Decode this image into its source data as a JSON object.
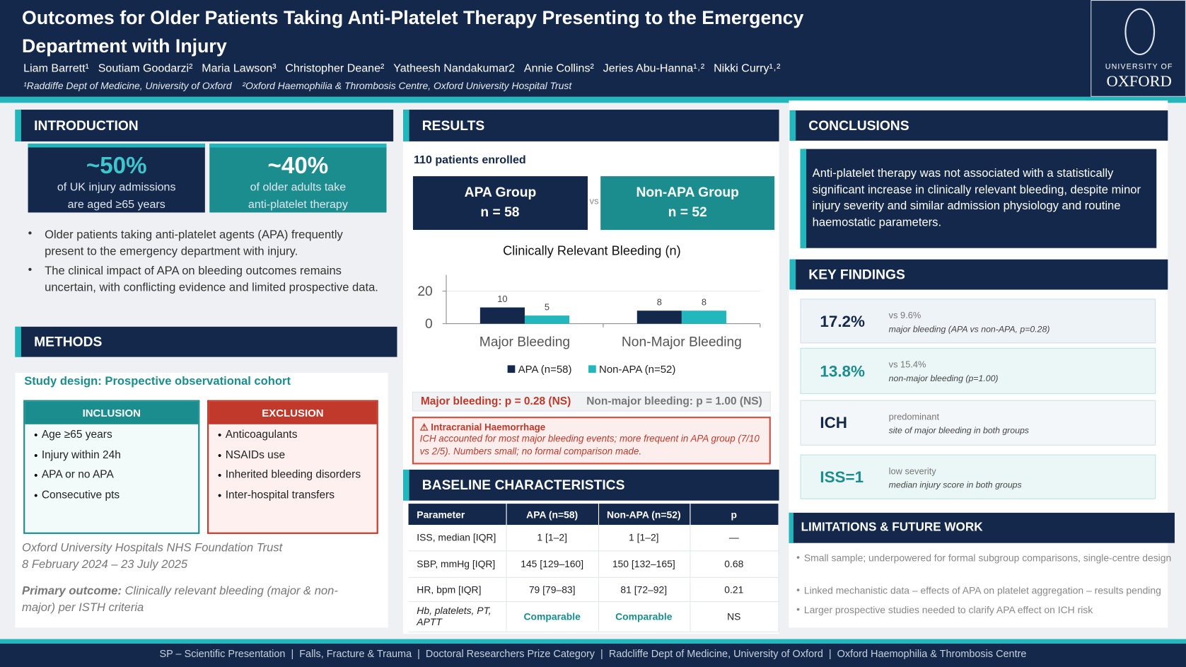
{
  "header": {
    "title": "Outcomes for Older Patients Taking Anti-Platelet Therapy Presenting to the Emergency Department with Injury",
    "authors": [
      "Liam Barrett¹",
      "Soutiam Goodarzi²",
      "Maria Lawson³",
      "Christopher Deane²",
      "Yatheesh Nandakumar2",
      "Annie Collins²",
      "Jeries Abu-Hanna¹˒²",
      "Nikki Curry¹˒²"
    ],
    "affiliations": [
      "¹Raddiffe Dept of Medicine, University of Oxford",
      "²Oxford Haemophilia & Thrombosis Centre, Oxford University Hospital Trust"
    ],
    "logo": [
      "UNIVERSITY OF",
      "OXFORD"
    ]
  },
  "introduction": {
    "heading": "INTRODUCTION",
    "stats": [
      {
        "value": "~50%",
        "text": [
          "of UK injury admissions",
          "are aged ≥65 years"
        ]
      },
      {
        "value": "~40%",
        "text": [
          "of older adults take",
          "anti-platelet therapy"
        ]
      }
    ],
    "bullets": [
      "Older patients taking anti-platelet agents (APA) frequently present to the emergency department with injury.",
      "The clinical impact of APA on bleeding outcomes remains uncertain, with conflicting evidence and limited prospective data."
    ]
  },
  "methods": {
    "heading": "METHODS",
    "design": "Study design: Prospective observational cohort",
    "inclusion": {
      "heading": "INCLUSION",
      "items": [
        "Age ≥65 years",
        "Injury within 24h",
        "APA or no APA",
        "Consecutive pts"
      ]
    },
    "exclusion": {
      "heading": "EXCLUSION",
      "items": [
        "Anticoagulants",
        "NSAIDs use",
        "Inherited bleeding disorders",
        "Inter-hospital transfers"
      ]
    },
    "site": [
      "Oxford University Hospitals NHS Foundation Trust",
      "8 February 2024 – 23 July 2025"
    ],
    "primary_outcome": {
      "label": "Primary outcome:",
      "text": "Clinically relevant bleeding (major & non-major) per ISTH criteria"
    }
  },
  "results": {
    "heading": "RESULTS",
    "enrolled": "110 patients enrolled",
    "groups": [
      {
        "name": "APA Group",
        "n": "n = 58"
      },
      {
        "name": "Non-APA Group",
        "n": "n = 52"
      }
    ],
    "vs": "vs",
    "significance": [
      "Major bleeding: p = 0.28 (NS)",
      "Non-major bleeding: p = 1.00 (NS)"
    ],
    "ich": {
      "title": "⚠ Intracranial Haemorrhage",
      "text": "ICH accounted for most major bleeding events; more frequent in APA group (7/10 vs 2/5). Numbers small; no formal comparison made."
    }
  },
  "chart_data": {
    "type": "bar",
    "title": "Clinically Relevant Bleeding (n)",
    "categories": [
      "Major Bleeding",
      "Non-Major Bleeding"
    ],
    "series": [
      {
        "name": "APA (n=58)",
        "color": "#13284a",
        "values": [
          10,
          8
        ]
      },
      {
        "name": "Non-APA (n=52)",
        "color": "#22b7bd",
        "values": [
          5,
          8
        ]
      }
    ],
    "ylim": [
      0,
      30
    ],
    "yticks": [
      0,
      20
    ],
    "grid": true,
    "legend": "bottom"
  },
  "baseline": {
    "heading": "BASELINE CHARACTERISTICS",
    "columns": [
      "Parameter",
      "APA (n=58)",
      "Non-APA (n=52)",
      "p"
    ],
    "rows": [
      [
        "ISS, median [IQR]",
        "1 [1–2]",
        "1 [1–2]",
        "—"
      ],
      [
        "SBP, mmHg [IQR]",
        "145 [129–160]",
        "150 [132–165]",
        "0.68"
      ],
      [
        "HR, bpm [IQR]",
        "79 [79–83]",
        "81 [72–92]",
        "0.21"
      ],
      [
        "Hb, platelets, PT, APTT",
        "Comparable",
        "Comparable",
        "NS"
      ]
    ]
  },
  "conclusions": {
    "heading": "CONCLUSIONS",
    "text": "Anti-platelet therapy was not associated with a statistically significant increase in clinically relevant bleeding, despite minor injury severity and similar admission physiology and routine haemostatic parameters."
  },
  "key_findings": {
    "heading": "KEY FINDINGS",
    "items": [
      {
        "value": "17.2%",
        "label": "vs 9.6%",
        "detail": "major bleeding (APA vs non-APA, p=0.28)"
      },
      {
        "value": "13.8%",
        "label": "vs 15.4%",
        "detail": "non-major bleeding (p=1.00)"
      },
      {
        "value": "ICH",
        "label": "predominant",
        "detail": "site of major bleeding in both groups"
      },
      {
        "value": "ISS=1",
        "label": "low severity",
        "detail": "median injury score in both groups"
      }
    ]
  },
  "limitations": {
    "heading": "LIMITATIONS & FUTURE WORK",
    "items": [
      "Small sample; underpowered for formal subgroup comparisons, single-centre design",
      "Linked mechanistic data – effects of APA on platelet aggregation – results pending",
      "Larger prospective studies needed to clarify APA effect on ICH risk"
    ]
  },
  "footer": "SP – Scientific Presentation  |  Falls, Fracture & Trauma  |  Doctoral Researchers Prize Category  |  Radcliffe Dept of Medicine, University of Oxford  |  Oxford Haemophilia & Thrombosis Centre"
}
